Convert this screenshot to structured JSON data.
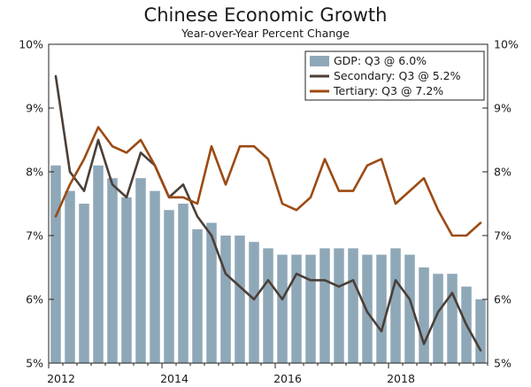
{
  "chart_data": {
    "type": "bar",
    "title": "Chinese Economic Growth",
    "subtitle": "Year-over-Year Percent Change",
    "xlabel": "",
    "ylabel": "",
    "ylim": [
      5,
      10
    ],
    "y_ticks": [
      "5%",
      "6%",
      "7%",
      "8%",
      "9%",
      "10%"
    ],
    "y2_ticks": [
      "5%",
      "6%",
      "7%",
      "8%",
      "9%",
      "10%"
    ],
    "x_ticks": [
      {
        "label": "2012",
        "index": 0
      },
      {
        "label": "2014",
        "index": 8
      },
      {
        "label": "2016",
        "index": 16
      },
      {
        "label": "2018",
        "index": 24
      }
    ],
    "periods": [
      "2012 Q1",
      "2012 Q2",
      "2012 Q3",
      "2012 Q4",
      "2013 Q1",
      "2013 Q2",
      "2013 Q3",
      "2013 Q4",
      "2014 Q1",
      "2014 Q2",
      "2014 Q3",
      "2014 Q4",
      "2015 Q1",
      "2015 Q2",
      "2015 Q3",
      "2015 Q4",
      "2016 Q1",
      "2016 Q2",
      "2016 Q3",
      "2016 Q4",
      "2017 Q1",
      "2017 Q2",
      "2017 Q3",
      "2017 Q4",
      "2018 Q1",
      "2018 Q2",
      "2018 Q3",
      "2018 Q4",
      "2019 Q1",
      "2019 Q2",
      "2019 Q3"
    ],
    "grid": false,
    "legend_position": "top-right",
    "series": [
      {
        "name": "GDP: Q3 @ 6.0%",
        "kind": "bar",
        "color": "#8fa8b8",
        "values": [
          8.1,
          7.7,
          7.5,
          8.1,
          7.9,
          7.6,
          7.9,
          7.7,
          7.4,
          7.5,
          7.1,
          7.2,
          7.0,
          7.0,
          6.9,
          6.8,
          6.7,
          6.7,
          6.7,
          6.8,
          6.8,
          6.8,
          6.7,
          6.7,
          6.8,
          6.7,
          6.5,
          6.4,
          6.4,
          6.2,
          6.0
        ]
      },
      {
        "name": "Secondary: Q3 @ 5.2%",
        "kind": "line",
        "color": "#4a3f38",
        "values": [
          9.5,
          8.0,
          7.7,
          8.5,
          7.8,
          7.6,
          8.3,
          8.1,
          7.6,
          7.8,
          7.3,
          7.0,
          6.4,
          6.2,
          6.0,
          6.3,
          6.0,
          6.4,
          6.3,
          6.3,
          6.2,
          6.3,
          5.8,
          5.5,
          6.3,
          6.0,
          5.3,
          5.8,
          6.1,
          5.6,
          5.2
        ]
      },
      {
        "name": "Tertiary: Q3 @ 7.2%",
        "kind": "line",
        "color": "#9c4a13",
        "values": [
          7.3,
          7.8,
          8.2,
          8.7,
          8.4,
          8.3,
          8.5,
          8.1,
          7.6,
          7.6,
          7.5,
          8.4,
          7.8,
          8.4,
          8.4,
          8.2,
          7.5,
          7.4,
          7.6,
          8.2,
          7.7,
          7.7,
          8.1,
          8.2,
          7.5,
          7.7,
          7.9,
          7.4,
          7.0,
          7.0,
          7.2
        ]
      }
    ]
  }
}
